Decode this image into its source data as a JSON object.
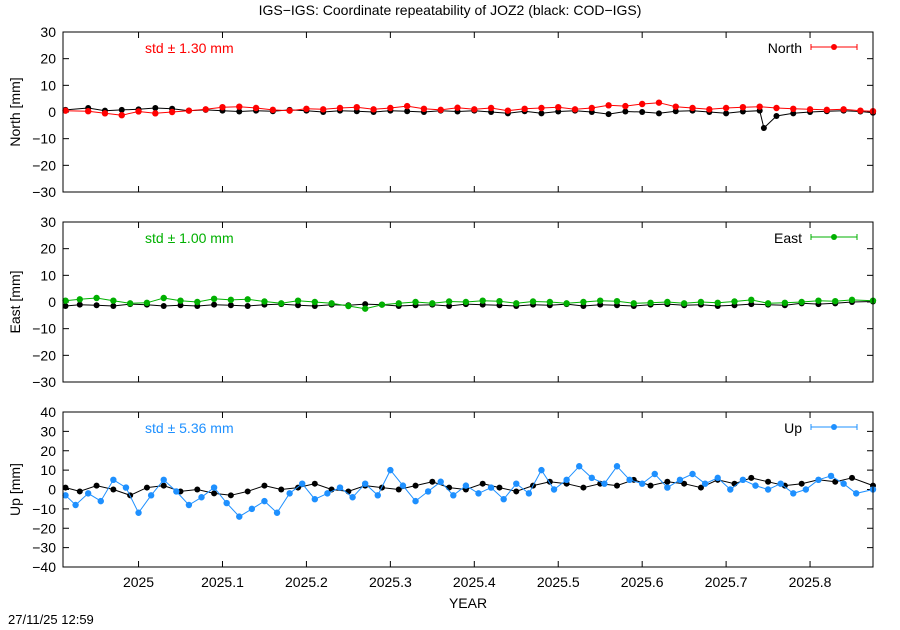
{
  "title": "IGS−IGS: Coordinate repeatability of JOZ2 (black: COD−IGS)",
  "timestamp": "27/11/25 12:59",
  "chart_data": {
    "type": "scatter",
    "xlabel": "YEAR",
    "xlim": [
      2024.91,
      2025.875
    ],
    "xticks": [
      2025,
      2025.1,
      2025.2,
      2025.3,
      2025.4,
      2025.5,
      2025.6,
      2025.7,
      2025.8
    ],
    "xtick_labels": [
      "2025",
      "2025.1",
      "2025.2",
      "2025.3",
      "2025.4",
      "2025.5",
      "2025.6",
      "2025.7",
      "2025.8"
    ],
    "panels": [
      {
        "name": "North",
        "ylabel": "North [mm]",
        "ylim": [
          -30,
          30
        ],
        "yticks": [
          -30,
          -20,
          -10,
          0,
          10,
          20,
          30
        ],
        "std_label": "std ± 1.30 mm",
        "legend": "North",
        "color": "#ff0000",
        "compare_color": "#000000",
        "series_main": {
          "x": [
            2024.913,
            2024.94,
            2024.96,
            2024.98,
            2025.0,
            2025.02,
            2025.04,
            2025.06,
            2025.08,
            2025.1,
            2025.12,
            2025.14,
            2025.16,
            2025.18,
            2025.2,
            2025.22,
            2025.24,
            2025.26,
            2025.28,
            2025.3,
            2025.32,
            2025.34,
            2025.36,
            2025.38,
            2025.4,
            2025.42,
            2025.44,
            2025.46,
            2025.48,
            2025.5,
            2025.52,
            2025.54,
            2025.56,
            2025.58,
            2025.6,
            2025.62,
            2025.64,
            2025.66,
            2025.68,
            2025.7,
            2025.72,
            2025.74,
            2025.76,
            2025.78,
            2025.8,
            2025.82,
            2025.84,
            2025.86,
            2025.875
          ],
          "y": [
            0.5,
            0.3,
            -0.5,
            -1.2,
            0.2,
            -0.5,
            0.0,
            0.5,
            1.0,
            1.8,
            2.0,
            1.5,
            0.8,
            0.5,
            1.2,
            1.0,
            1.5,
            1.8,
            1.0,
            1.5,
            2.2,
            1.2,
            0.8,
            1.6,
            1.0,
            1.5,
            0.5,
            1.2,
            1.5,
            1.8,
            1.0,
            1.5,
            2.5,
            2.2,
            3.0,
            3.5,
            2.0,
            1.5,
            1.0,
            1.5,
            1.8,
            2.0,
            1.5,
            1.2,
            1.0,
            0.8,
            1.0,
            0.5,
            0.3
          ]
        },
        "series_compare": {
          "x": [
            2024.913,
            2024.94,
            2024.96,
            2024.98,
            2025.0,
            2025.02,
            2025.04,
            2025.06,
            2025.08,
            2025.1,
            2025.12,
            2025.14,
            2025.16,
            2025.18,
            2025.2,
            2025.22,
            2025.24,
            2025.26,
            2025.28,
            2025.3,
            2025.32,
            2025.34,
            2025.36,
            2025.38,
            2025.4,
            2025.42,
            2025.44,
            2025.46,
            2025.48,
            2025.5,
            2025.52,
            2025.54,
            2025.56,
            2025.58,
            2025.6,
            2025.62,
            2025.64,
            2025.66,
            2025.68,
            2025.7,
            2025.72,
            2025.74,
            2025.745,
            2025.76,
            2025.78,
            2025.8,
            2025.82,
            2025.84,
            2025.86,
            2025.875
          ],
          "y": [
            0.8,
            1.5,
            0.5,
            0.8,
            1.0,
            1.5,
            1.2,
            0.5,
            0.8,
            0.5,
            0.2,
            0.5,
            0.3,
            0.8,
            0.5,
            0.0,
            0.5,
            0.3,
            0.0,
            0.5,
            0.3,
            0.0,
            0.5,
            0.2,
            0.5,
            0.0,
            -0.5,
            0.3,
            -0.5,
            0.2,
            0.5,
            0.0,
            -0.8,
            0.2,
            0.0,
            -0.5,
            0.3,
            0.5,
            0.0,
            -0.5,
            0.2,
            0.5,
            -6.0,
            -1.5,
            -0.5,
            0.0,
            0.3,
            0.5,
            0.2,
            -0.3
          ]
        }
      },
      {
        "name": "East",
        "ylabel": "East [mm]",
        "ylim": [
          -30,
          30
        ],
        "yticks": [
          -30,
          -20,
          -10,
          0,
          10,
          20,
          30
        ],
        "std_label": "std ± 1.00 mm",
        "legend": "East",
        "color": "#00b000",
        "compare_color": "#000000",
        "series_main": {
          "x": [
            2024.913,
            2024.93,
            2024.95,
            2024.97,
            2024.99,
            2025.01,
            2025.03,
            2025.05,
            2025.07,
            2025.09,
            2025.11,
            2025.13,
            2025.15,
            2025.17,
            2025.19,
            2025.21,
            2025.23,
            2025.25,
            2025.27,
            2025.29,
            2025.31,
            2025.33,
            2025.35,
            2025.37,
            2025.39,
            2025.41,
            2025.43,
            2025.45,
            2025.47,
            2025.49,
            2025.51,
            2025.53,
            2025.55,
            2025.57,
            2025.59,
            2025.61,
            2025.63,
            2025.65,
            2025.67,
            2025.69,
            2025.71,
            2025.73,
            2025.75,
            2025.77,
            2025.79,
            2025.81,
            2025.83,
            2025.85,
            2025.875
          ],
          "y": [
            0.5,
            1.0,
            1.5,
            0.5,
            -0.5,
            -0.3,
            1.5,
            0.5,
            0.0,
            1.2,
            0.8,
            1.0,
            0.2,
            -0.5,
            0.5,
            0.0,
            -0.5,
            -1.5,
            -2.5,
            -1.0,
            -0.5,
            0.0,
            -0.5,
            0.2,
            0.0,
            0.5,
            0.3,
            -0.5,
            0.2,
            0.0,
            -0.5,
            0.0,
            0.5,
            0.3,
            -0.5,
            -0.3,
            0.0,
            -0.5,
            0.0,
            -0.3,
            0.2,
            0.8,
            -0.5,
            -0.3,
            0.0,
            0.5,
            0.3,
            0.8,
            0.5
          ]
        },
        "series_compare": {
          "x": [
            2024.913,
            2024.93,
            2024.95,
            2024.97,
            2024.99,
            2025.01,
            2025.03,
            2025.05,
            2025.07,
            2025.09,
            2025.11,
            2025.13,
            2025.15,
            2025.17,
            2025.19,
            2025.21,
            2025.23,
            2025.25,
            2025.27,
            2025.29,
            2025.31,
            2025.33,
            2025.35,
            2025.37,
            2025.39,
            2025.41,
            2025.43,
            2025.45,
            2025.47,
            2025.49,
            2025.51,
            2025.53,
            2025.55,
            2025.57,
            2025.59,
            2025.61,
            2025.63,
            2025.65,
            2025.67,
            2025.69,
            2025.71,
            2025.73,
            2025.75,
            2025.77,
            2025.79,
            2025.81,
            2025.83,
            2025.85,
            2025.875
          ],
          "y": [
            -1.5,
            -1.0,
            -1.2,
            -1.5,
            -0.8,
            -1.0,
            -1.5,
            -1.2,
            -1.5,
            -1.0,
            -1.2,
            -1.5,
            -1.0,
            -0.8,
            -1.2,
            -1.5,
            -1.0,
            -1.2,
            -0.8,
            -1.0,
            -1.5,
            -1.2,
            -1.0,
            -1.5,
            -0.8,
            -1.0,
            -1.2,
            -1.5,
            -1.0,
            -1.2,
            -0.8,
            -1.5,
            -1.0,
            -1.2,
            -1.5,
            -1.0,
            -0.8,
            -1.2,
            -1.0,
            -1.5,
            -1.2,
            -0.8,
            -1.0,
            -1.2,
            -0.5,
            -0.8,
            -0.5,
            0.0,
            0.2
          ]
        }
      },
      {
        "name": "Up",
        "ylabel": "Up [mm]",
        "ylim": [
          -40,
          40
        ],
        "yticks": [
          -40,
          -30,
          -20,
          -10,
          0,
          10,
          20,
          30,
          40
        ],
        "std_label": "std ± 5.36 mm",
        "legend": "Up",
        "color": "#1e90ff",
        "compare_color": "#000000",
        "series_main": {
          "x": [
            2024.913,
            2024.925,
            2024.94,
            2024.955,
            2024.97,
            2024.985,
            2025.0,
            2025.015,
            2025.03,
            2025.045,
            2025.06,
            2025.075,
            2025.09,
            2025.105,
            2025.12,
            2025.135,
            2025.15,
            2025.165,
            2025.18,
            2025.195,
            2025.21,
            2025.225,
            2025.24,
            2025.255,
            2025.27,
            2025.285,
            2025.3,
            2025.315,
            2025.33,
            2025.345,
            2025.36,
            2025.375,
            2025.39,
            2025.405,
            2025.42,
            2025.435,
            2025.45,
            2025.465,
            2025.48,
            2025.495,
            2025.51,
            2025.525,
            2025.54,
            2025.555,
            2025.57,
            2025.585,
            2025.6,
            2025.615,
            2025.63,
            2025.645,
            2025.66,
            2025.675,
            2025.69,
            2025.705,
            2025.72,
            2025.735,
            2025.75,
            2025.765,
            2025.78,
            2025.795,
            2025.81,
            2025.825,
            2025.84,
            2025.855,
            2025.875
          ],
          "y": [
            -3,
            -8,
            -2,
            -6,
            5,
            1,
            -12,
            -3,
            5,
            -1,
            -8,
            -4,
            1,
            -7,
            -14,
            -10,
            -6,
            -12,
            -2,
            3,
            -5,
            -2,
            1,
            -4,
            3,
            -3,
            10,
            2,
            -6,
            -1,
            4,
            -3,
            2,
            -2,
            1,
            -5,
            3,
            -2,
            10,
            0,
            5,
            12,
            6,
            3,
            12,
            5,
            3,
            8,
            1,
            5,
            8,
            3,
            6,
            0,
            5,
            2,
            0,
            3,
            -2,
            0,
            5,
            7,
            3,
            -2,
            0
          ]
        },
        "series_compare": {
          "x": [
            2024.913,
            2024.93,
            2024.95,
            2024.97,
            2024.99,
            2025.01,
            2025.03,
            2025.05,
            2025.07,
            2025.09,
            2025.11,
            2025.13,
            2025.15,
            2025.17,
            2025.19,
            2025.21,
            2025.23,
            2025.25,
            2025.27,
            2025.29,
            2025.31,
            2025.33,
            2025.35,
            2025.37,
            2025.39,
            2025.41,
            2025.43,
            2025.45,
            2025.47,
            2025.49,
            2025.51,
            2025.53,
            2025.55,
            2025.57,
            2025.59,
            2025.61,
            2025.63,
            2025.65,
            2025.67,
            2025.69,
            2025.71,
            2025.73,
            2025.75,
            2025.77,
            2025.79,
            2025.81,
            2025.83,
            2025.85,
            2025.875
          ],
          "y": [
            1,
            -1,
            2,
            0,
            -3,
            1,
            2,
            -1,
            0,
            -2,
            -3,
            -1,
            2,
            0,
            1,
            3,
            0,
            -1,
            2,
            1,
            0,
            2,
            4,
            1,
            0,
            3,
            1,
            -1,
            2,
            4,
            3,
            1,
            3,
            2,
            5,
            2,
            4,
            3,
            1,
            5,
            3,
            6,
            4,
            2,
            3,
            5,
            4,
            6,
            2
          ]
        }
      }
    ]
  }
}
